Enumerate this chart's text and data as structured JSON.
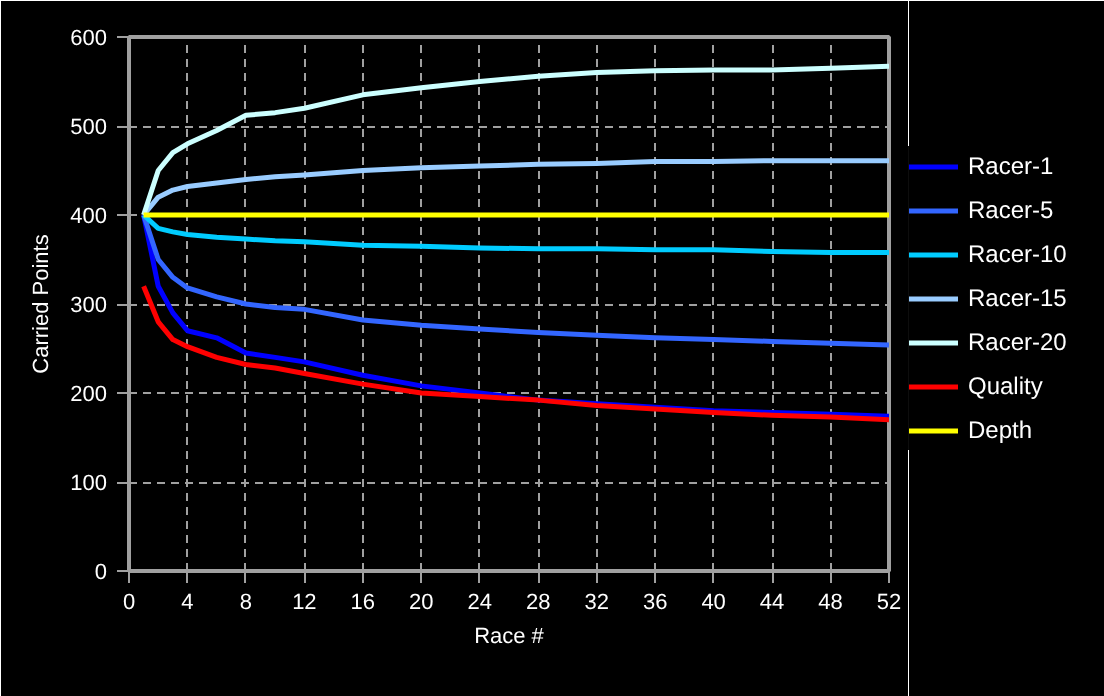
{
  "chart_data": {
    "type": "line",
    "xlabel": "Race #",
    "ylabel": "Carried Points",
    "xlim": [
      0,
      52
    ],
    "ylim": [
      0,
      600
    ],
    "xticks": [
      0,
      4,
      8,
      12,
      16,
      20,
      24,
      28,
      32,
      36,
      40,
      44,
      48,
      52
    ],
    "yticks": [
      0,
      100,
      200,
      300,
      400,
      500,
      600
    ],
    "grid": true,
    "legend": "right",
    "line_style": "solid",
    "marker": "none",
    "x": [
      1,
      2,
      3,
      4,
      6,
      8,
      10,
      12,
      16,
      20,
      24,
      28,
      32,
      36,
      40,
      44,
      48,
      52
    ],
    "series": [
      {
        "name": "Racer-1",
        "color": "#0000ff",
        "values": [
          400,
          320,
          290,
          270,
          262,
          245,
          240,
          235,
          220,
          208,
          200,
          192,
          188,
          184,
          180,
          178,
          176,
          174
        ]
      },
      {
        "name": "Racer-5",
        "color": "#3366ff",
        "values": [
          400,
          350,
          330,
          318,
          308,
          300,
          296,
          294,
          282,
          276,
          272,
          268,
          265,
          262,
          260,
          258,
          256,
          254
        ]
      },
      {
        "name": "Racer-10",
        "color": "#00ccff",
        "values": [
          400,
          385,
          381,
          378,
          375,
          373,
          371,
          370,
          366,
          365,
          363,
          362,
          362,
          361,
          361,
          359,
          358,
          358
        ]
      },
      {
        "name": "Racer-15",
        "color": "#99ccff",
        "values": [
          400,
          420,
          428,
          432,
          436,
          440,
          443,
          445,
          450,
          453,
          455,
          457,
          458,
          460,
          460,
          461,
          461,
          461
        ]
      },
      {
        "name": "Racer-20",
        "color": "#ccffff",
        "values": [
          400,
          450,
          470,
          480,
          495,
          512,
          515,
          520,
          535,
          543,
          550,
          556,
          560,
          562,
          563,
          563,
          565,
          567
        ]
      },
      {
        "name": "Quality",
        "color": "#ff0000",
        "values": [
          320,
          280,
          260,
          252,
          240,
          232,
          228,
          222,
          210,
          200,
          196,
          192,
          186,
          182,
          178,
          175,
          173,
          170
        ]
      },
      {
        "name": "Depth",
        "color": "#ffff00",
        "values": [
          400,
          400,
          400,
          400,
          400,
          400,
          400,
          400,
          400,
          400,
          400,
          400,
          400,
          400,
          400,
          400,
          400,
          400
        ]
      }
    ]
  }
}
